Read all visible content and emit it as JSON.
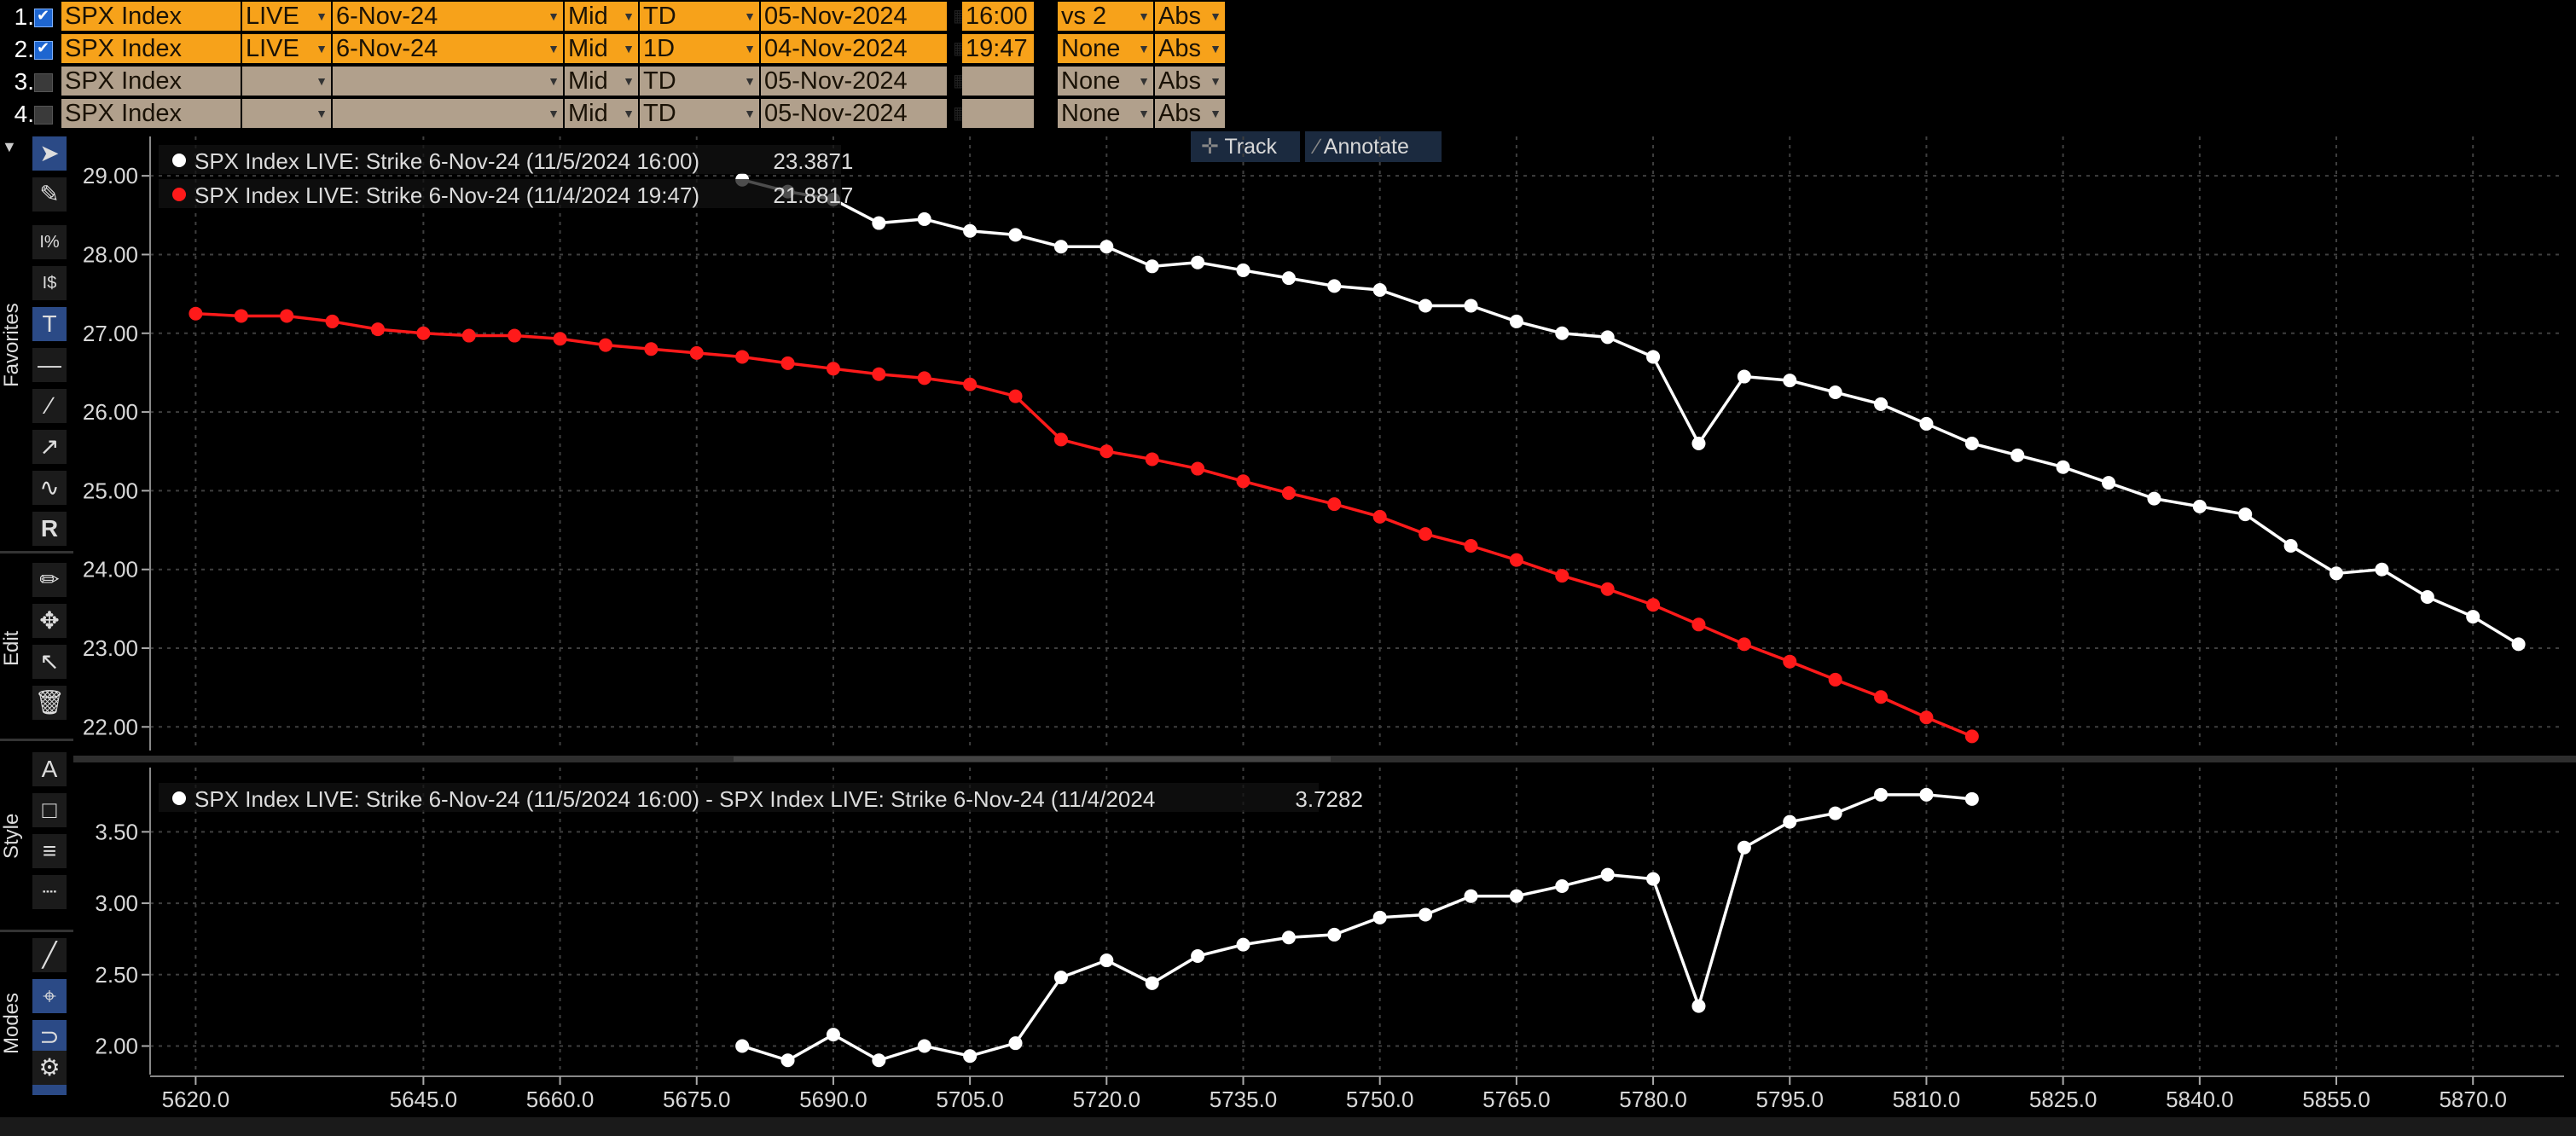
{
  "rows": [
    {
      "num": "1.",
      "checked": true,
      "ticker": "SPX Index",
      "source": "LIVE",
      "expiry": "6-Nov-24",
      "side": "Mid",
      "range": "TD",
      "date": "05-Nov-2024",
      "time": "16:00",
      "compare": "vs 2",
      "mode": "Abs",
      "active": true
    },
    {
      "num": "2.",
      "checked": true,
      "ticker": "SPX Index",
      "source": "LIVE",
      "expiry": "6-Nov-24",
      "side": "Mid",
      "range": "1D",
      "date": "04-Nov-2024",
      "time": "19:47",
      "compare": "None",
      "mode": "Abs",
      "active": true
    },
    {
      "num": "3.",
      "checked": false,
      "ticker": "SPX Index",
      "source": "",
      "expiry": "",
      "side": "Mid",
      "range": "TD",
      "date": "05-Nov-2024",
      "time": "",
      "compare": "None",
      "mode": "Abs",
      "active": false
    },
    {
      "num": "4.",
      "checked": false,
      "ticker": "SPX Index",
      "source": "",
      "expiry": "",
      "side": "Mid",
      "range": "TD",
      "date": "05-Nov-2024",
      "time": "",
      "compare": "None",
      "mode": "Abs",
      "active": false
    }
  ],
  "toolbar": {
    "favorites_label": "Favorites",
    "edit_label": "Edit",
    "style_label": "Style",
    "modes_label": "Modes",
    "track_label": "Track",
    "annotate_label": "Annotate"
  },
  "colors": {
    "series1": "#ffffff",
    "series2": "#ff1a1a",
    "grid": "#4a4a4a",
    "orange": "#f7a21a"
  },
  "chart_data": [
    {
      "type": "line",
      "xlim": [
        5615,
        5880
      ],
      "ylim": [
        21.7,
        29.5
      ],
      "yticks": [
        "29.00",
        "28.00",
        "27.00",
        "26.00",
        "25.00",
        "24.00",
        "23.00",
        "22.00"
      ],
      "legend": [
        {
          "text": "SPX Index LIVE: Strike 6-Nov-24 (11/5/2024 16:00)",
          "value": "23.3871",
          "color": "#ffffff"
        },
        {
          "text": "SPX Index LIVE: Strike 6-Nov-24 (11/4/2024 19:47)",
          "value": "21.8817",
          "color": "#ff1a1a"
        }
      ],
      "series": [
        {
          "color": "#ffffff",
          "x": [
            5680,
            5685,
            5690,
            5695,
            5700,
            5705,
            5710,
            5715,
            5720,
            5725,
            5730,
            5735,
            5740,
            5745,
            5750,
            5755,
            5760,
            5765,
            5770,
            5775,
            5780,
            5785,
            5790,
            5795,
            5800,
            5805,
            5810,
            5815,
            5820,
            5825,
            5830,
            5835,
            5840,
            5845,
            5850,
            5855,
            5860,
            5865,
            5870,
            5875
          ],
          "y": [
            28.95,
            28.8,
            28.7,
            28.4,
            28.45,
            28.3,
            28.25,
            28.1,
            28.1,
            27.85,
            27.9,
            27.8,
            27.7,
            27.6,
            27.55,
            27.35,
            27.35,
            27.15,
            27.0,
            26.95,
            26.7,
            25.6,
            26.45,
            26.4,
            26.25,
            26.1,
            25.85,
            25.6,
            25.45,
            25.3,
            25.1,
            24.9,
            24.8,
            24.7,
            24.3,
            23.95,
            24.0,
            23.65,
            23.4,
            23.05
          ]
        },
        {
          "color": "#ff1a1a",
          "x": [
            5620,
            5625,
            5630,
            5635,
            5640,
            5645,
            5650,
            5655,
            5660,
            5665,
            5670,
            5675,
            5680,
            5685,
            5690,
            5695,
            5700,
            5705,
            5710,
            5715,
            5720,
            5725,
            5730,
            5735,
            5740,
            5745,
            5750,
            5755,
            5760,
            5765,
            5770,
            5775,
            5780,
            5785,
            5790,
            5795,
            5800,
            5805,
            5810,
            5815
          ],
          "y": [
            27.25,
            27.22,
            27.22,
            27.15,
            27.05,
            27.0,
            26.97,
            26.97,
            26.93,
            26.85,
            26.8,
            26.75,
            26.7,
            26.62,
            26.55,
            26.48,
            26.43,
            26.35,
            26.2,
            25.65,
            25.5,
            25.4,
            25.28,
            25.12,
            24.97,
            24.83,
            24.67,
            24.45,
            24.3,
            24.12,
            23.92,
            23.75,
            23.55,
            23.3,
            23.05,
            22.83,
            22.6,
            22.38,
            22.12,
            21.88
          ]
        }
      ]
    },
    {
      "type": "line",
      "xlim": [
        5615,
        5880
      ],
      "ylim": [
        1.8,
        3.95
      ],
      "yticks": [
        "3.50",
        "3.00",
        "2.50",
        "2.00"
      ],
      "xticks": [
        "5620.0",
        "5645.0",
        "5660.0",
        "5675.0",
        "5690.0",
        "5705.0",
        "5720.0",
        "5735.0",
        "5750.0",
        "5765.0",
        "5780.0",
        "5795.0",
        "5810.0",
        "5825.0",
        "5840.0",
        "5855.0",
        "5870.0"
      ],
      "legend": [
        {
          "text": "SPX Index LIVE: Strike 6-Nov-24 (11/5/2024 16:00) - SPX Index LIVE: Strike 6-Nov-24 (11/4/2024",
          "value": "3.7282",
          "color": "#ffffff"
        }
      ],
      "series": [
        {
          "color": "#ffffff",
          "x": [
            5680,
            5685,
            5690,
            5695,
            5700,
            5705,
            5710,
            5715,
            5720,
            5725,
            5730,
            5735,
            5740,
            5745,
            5750,
            5755,
            5760,
            5765,
            5770,
            5775,
            5780,
            5785,
            5790,
            5795,
            5800,
            5805,
            5810,
            5815
          ],
          "y": [
            2.0,
            1.9,
            2.08,
            1.9,
            2.0,
            1.93,
            2.02,
            2.48,
            2.6,
            2.44,
            2.63,
            2.71,
            2.76,
            2.78,
            2.9,
            2.92,
            3.05,
            3.05,
            3.12,
            3.2,
            3.17,
            2.28,
            3.39,
            3.57,
            3.63,
            3.76,
            3.76,
            3.73
          ]
        }
      ]
    }
  ]
}
